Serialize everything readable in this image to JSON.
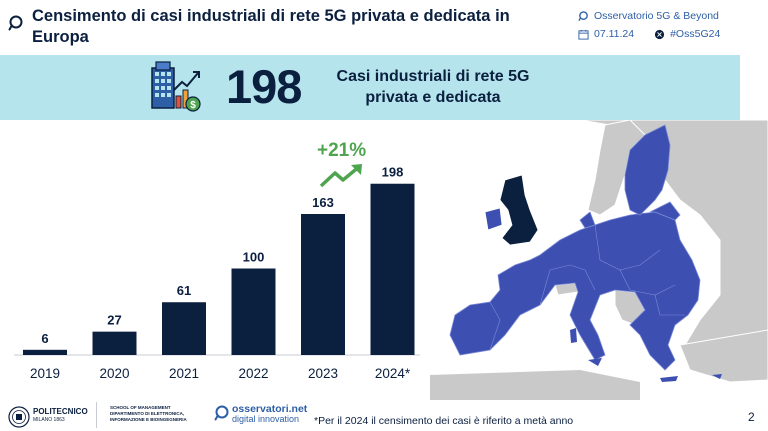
{
  "header": {
    "title": "Censimento di casi industriali di rete 5G privata e dedicata in Europa",
    "observatory": "Osservatorio 5G & Beyond",
    "date": "07.11.24",
    "hashtag": "#Oss5G24"
  },
  "banner": {
    "number": "198",
    "text": "Casi industriali di rete 5G privata e dedicata"
  },
  "chart_data": {
    "type": "bar",
    "categories": [
      "2019",
      "2020",
      "2021",
      "2022",
      "2023",
      "2024*"
    ],
    "values": [
      6,
      27,
      61,
      100,
      163,
      198
    ],
    "data_labels": [
      "6",
      "27",
      "61",
      "100",
      "163",
      "198"
    ],
    "annotation": "+21%",
    "ylim": [
      0,
      200
    ],
    "grid": false,
    "bar_color": "#0b1f3f"
  },
  "colors": {
    "navy": "#0b1f3f",
    "banner_bg": "#b5e4ec",
    "growth_green": "#4fa54f",
    "map_eu": "#3d4fb0",
    "map_other": "#c9c9c9",
    "map_uk": "#0b1f3f"
  },
  "footer": {
    "polimi_name": "POLITECNICO",
    "polimi_sub": "MILANO 1863",
    "school_line1": "SCHOOL OF MANAGEMENT",
    "school_line2": "DIPARTIMENTO DI ELETTRONICA,",
    "school_line3": "INFORMAZIONE E BIOINGEGNERIA",
    "oss_name": "osservatori.net",
    "oss_sub": "digital innovation",
    "footnote": "*Per il 2024 il censimento dei casi è riferito a metà anno",
    "page": "2"
  },
  "icons": [
    "magnifier-logo-icon",
    "calendar-icon",
    "twitter-icon",
    "building-growth-icon",
    "growth-arrow-icon",
    "polimi-seal-icon",
    "osservatori-logo-icon"
  ]
}
